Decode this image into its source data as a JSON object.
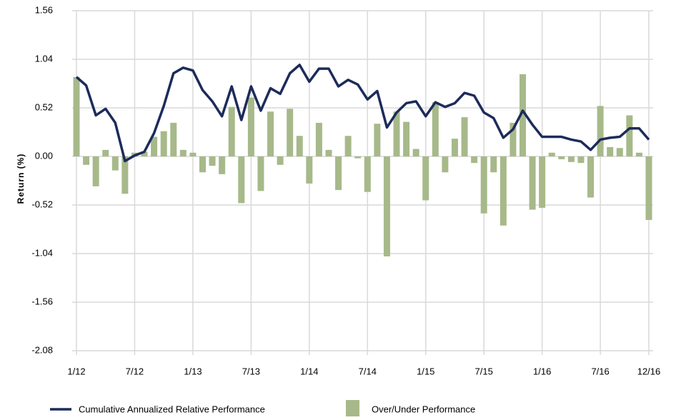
{
  "chart_data": {
    "type": "combo",
    "y_axis_label": "Return (%)",
    "categories": [
      "1/12",
      null,
      null,
      null,
      null,
      null,
      "7/12",
      null,
      null,
      null,
      null,
      null,
      "1/13",
      null,
      null,
      null,
      null,
      null,
      "7/13",
      null,
      null,
      null,
      null,
      null,
      "1/14",
      null,
      null,
      null,
      null,
      null,
      "7/14",
      null,
      null,
      null,
      null,
      null,
      "1/15",
      null,
      null,
      null,
      null,
      null,
      "7/15",
      null,
      null,
      null,
      null,
      null,
      "1/16",
      null,
      null,
      null,
      null,
      null,
      "7/16",
      null,
      null,
      null,
      null,
      "12/16"
    ],
    "series": [
      {
        "name": "Over/Under Performance",
        "type": "bar",
        "color": "#a7b98a",
        "values": [
          0.85,
          -0.09,
          -0.32,
          0.07,
          -0.15,
          -0.4,
          0.04,
          0.05,
          0.21,
          0.27,
          0.36,
          0.07,
          0.04,
          -0.17,
          -0.1,
          -0.19,
          0.53,
          -0.5,
          0.63,
          -0.37,
          0.48,
          -0.09,
          0.51,
          0.22,
          -0.29,
          0.36,
          0.07,
          -0.36,
          0.22,
          -0.02,
          -0.38,
          0.35,
          -1.07,
          0.48,
          0.37,
          0.08,
          -0.47,
          0.58,
          -0.17,
          0.19,
          0.42,
          -0.07,
          -0.61,
          -0.17,
          -0.74,
          0.36,
          0.88,
          -0.57,
          -0.55,
          0.04,
          -0.03,
          -0.06,
          -0.07,
          -0.44,
          0.54,
          0.1,
          0.09,
          0.44,
          0.04,
          -0.68
        ]
      },
      {
        "name": "Cumulative Annualized Relative Performance",
        "type": "line",
        "color": "#1c2b5a",
        "values": [
          0.85,
          0.76,
          0.44,
          0.51,
          0.36,
          -0.05,
          0.01,
          0.05,
          0.25,
          0.54,
          0.89,
          0.95,
          0.92,
          0.71,
          0.59,
          0.43,
          0.75,
          0.39,
          0.75,
          0.49,
          0.73,
          0.67,
          0.89,
          0.98,
          0.8,
          0.94,
          0.94,
          0.75,
          0.82,
          0.77,
          0.61,
          0.7,
          0.31,
          0.47,
          0.57,
          0.59,
          0.43,
          0.58,
          0.53,
          0.57,
          0.68,
          0.65,
          0.47,
          0.41,
          0.2,
          0.29,
          0.49,
          0.34,
          0.21,
          0.21,
          0.21,
          0.18,
          0.16,
          0.07,
          0.18,
          0.2,
          0.21,
          0.3,
          0.3,
          0.18
        ]
      }
    ],
    "ylim": [
      -2.08,
      1.56
    ],
    "yticks": [
      1.56,
      1.04,
      0.52,
      {
        "value": 0,
        "label": "0.00"
      },
      -0.52,
      -1.04,
      -1.56,
      -2.08
    ],
    "grid": true
  }
}
